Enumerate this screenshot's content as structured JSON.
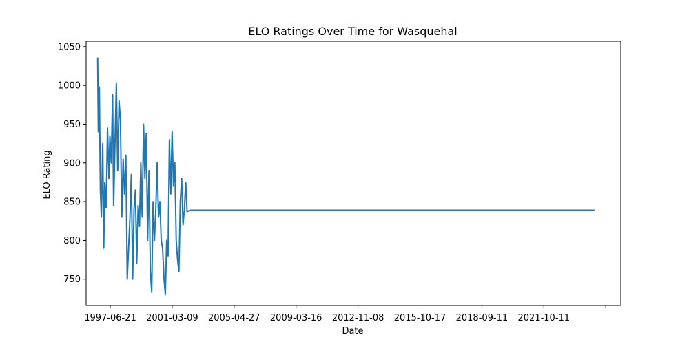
{
  "chart_data": {
    "type": "line",
    "title": "ELO Ratings Over Time for Wasquehal",
    "xlabel": "Date",
    "ylabel": "ELO Rating",
    "x_tick_labels": [
      "1997-06-21",
      "2001-03-09",
      "2005-04-27",
      "2009-03-16",
      "2012-11-08",
      "2015-10-17",
      "2018-09-11",
      "2021-10-11",
      ""
    ],
    "y_ticks": [
      750,
      800,
      850,
      900,
      950,
      1000,
      1050
    ],
    "ylim": [
      716,
      1057
    ],
    "xlim": [
      "1996-10-27",
      "2026-12-14"
    ],
    "grid": false,
    "legend": "none",
    "color": "#1f77b4",
    "series": [
      {
        "x": [
          "1997-06-21",
          "1997-07-05",
          "1997-07-26",
          "1997-08-16",
          "1997-09-06",
          "1997-10-04",
          "1997-10-25",
          "1997-11-15",
          "1997-12-13",
          "1998-01-10",
          "1998-02-07",
          "1998-02-28",
          "1998-03-28",
          "1998-04-25",
          "1998-05-16",
          "1998-06-13",
          "1998-07-11",
          "1998-08-08",
          "1998-09-05",
          "1998-10-03",
          "1998-10-31",
          "1998-11-28",
          "1998-12-26",
          "1999-01-23",
          "1999-02-20",
          "1999-03-20",
          "1999-04-17",
          "1999-05-15",
          "1999-06-12",
          "1999-07-10",
          "1999-08-07",
          "1999-09-04",
          "1999-10-02",
          "1999-10-30",
          "1999-11-27",
          "1999-12-25",
          "2000-01-22",
          "2000-02-19",
          "2000-03-18",
          "2000-04-15",
          "2000-05-13",
          "2000-06-10",
          "2000-07-08",
          "2000-08-05",
          "2000-09-02",
          "2000-09-30",
          "2000-10-28",
          "2000-11-25",
          "2000-12-23",
          "2001-01-20",
          "2001-02-17",
          "2001-03-17",
          "2001-04-14",
          "2001-05-12",
          "2001-06-09",
          "2001-07-07",
          "2001-08-04",
          "2001-09-01",
          "2001-09-29",
          "2001-10-27",
          "2001-11-24",
          "2001-12-22",
          "2002-01-19",
          "2002-02-16",
          "2002-03-16",
          "2002-04-13",
          "2002-05-11",
          "2002-06-08",
          "2002-07-06",
          "2002-08-03",
          "2002-09-28",
          "2002-11-23",
          "2003-01-18",
          "2025-06-22"
        ],
        "y": [
          1036,
          940,
          998,
          865,
          830,
          925,
          790,
          875,
          842,
          945,
          880,
          935,
          900,
          988,
          845,
          925,
          1003,
          890,
          980,
          955,
          830,
          905,
          860,
          910,
          750,
          790,
          830,
          885,
          750,
          840,
          865,
          770,
          845,
          818,
          900,
          830,
          950,
          880,
          938,
          800,
          890,
          760,
          733,
          850,
          800,
          840,
          900,
          830,
          850,
          800,
          790,
          752,
          730,
          800,
          780,
          930,
          860,
          940,
          870,
          900,
          800,
          775,
          760,
          850,
          880,
          820,
          840,
          875,
          837,
          838,
          839,
          839,
          839,
          839
        ]
      }
    ]
  }
}
